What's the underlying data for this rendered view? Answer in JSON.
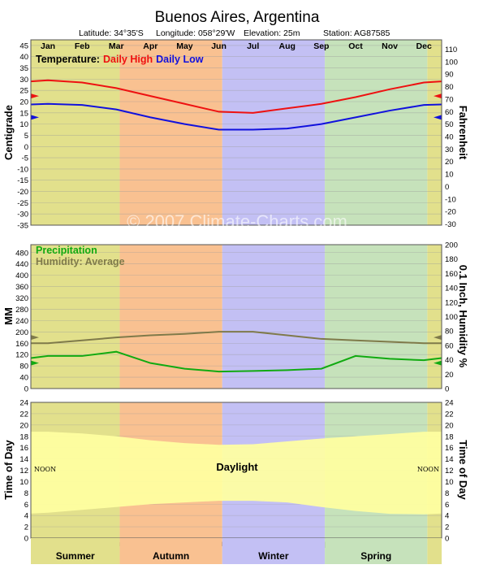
{
  "header": {
    "title": "Buenos Aires,  Argentina",
    "latitude": "Latitude: 34°35'S",
    "longitude": "Longitude: 058°29'W",
    "elevation": "Elevation: 25m",
    "station": "Station: AG87585"
  },
  "watermark": "© 2007 Climate-Charts.com",
  "months": [
    "Jan",
    "Feb",
    "Mar",
    "Apr",
    "May",
    "Jun",
    "Jul",
    "Aug",
    "Sep",
    "Oct",
    "Nov",
    "Dec"
  ],
  "seasons": [
    {
      "name": "Summer",
      "color": "#e2e08c"
    },
    {
      "name": "Autumn",
      "color": "#f9c191"
    },
    {
      "name": "Winter",
      "color": "#c3c0f4"
    },
    {
      "name": "Spring",
      "color": "#c6e2bb"
    }
  ],
  "colors": {
    "daily_high": "#ee1111",
    "daily_low": "#1111dd",
    "precipitation": "#11aa11",
    "humidity": "#7f7a4a",
    "daylight": "#ffffa0"
  },
  "chart_data": [
    {
      "type": "line",
      "legend_prefix": "Temperature:",
      "ylabel": "Centigrade",
      "y2label": "Fahrenheit",
      "categories": [
        "Jan",
        "Feb",
        "Mar",
        "Apr",
        "May",
        "Jun",
        "Jul",
        "Aug",
        "Sep",
        "Oct",
        "Nov",
        "Dec"
      ],
      "series": [
        {
          "name": "Daily High",
          "values": [
            29.5,
            28.5,
            26,
            22.5,
            19,
            15.5,
            15,
            17,
            19,
            22,
            25.5,
            28.5
          ]
        },
        {
          "name": "Daily Low",
          "values": [
            19,
            18.5,
            16.5,
            13,
            10,
            7.5,
            7.5,
            8,
            10,
            13,
            16,
            18.5
          ]
        }
      ],
      "ylim": [
        -35,
        45
      ],
      "y_ticks": [
        45,
        40,
        35,
        30,
        25,
        20,
        15,
        10,
        5,
        0,
        -5,
        -10,
        -15,
        -20,
        -25,
        -30,
        -35
      ],
      "y2_ticks": [
        110,
        100,
        90,
        80,
        70,
        60,
        50,
        40,
        30,
        20,
        10,
        0,
        -10,
        -20,
        -30
      ],
      "annual_mean_marks": {
        "daily_high": 22.5,
        "daily_low": 13
      }
    },
    {
      "type": "line",
      "ylabel": "MM",
      "y2label": "0.1 Inch, Humidity %",
      "categories": [
        "Jan",
        "Feb",
        "Mar",
        "Apr",
        "May",
        "Jun",
        "Jul",
        "Aug",
        "Sep",
        "Oct",
        "Nov",
        "Dec"
      ],
      "series": [
        {
          "name": "Precipitation",
          "values": [
            115,
            115,
            130,
            90,
            70,
            60,
            62,
            65,
            70,
            115,
            105,
            100
          ]
        },
        {
          "name": "Humidity: Average",
          "values": [
            63,
            67,
            71,
            74,
            76,
            79,
            79,
            74,
            69,
            67,
            65,
            63
          ]
        }
      ],
      "ylim": [
        0,
        508
      ],
      "y_ticks": [
        480,
        440,
        400,
        360,
        320,
        280,
        240,
        200,
        160,
        120,
        80,
        40,
        0
      ],
      "y2_ticks": [
        200,
        180,
        160,
        140,
        120,
        100,
        80,
        60,
        40,
        20,
        0
      ],
      "y2lim": [
        0,
        200
      ],
      "annual_mean_marks": {
        "precipitation": 90,
        "humidity": 71
      }
    },
    {
      "type": "area",
      "ylabel": "Time of Day",
      "y2label": "Time of Day",
      "series_label": "Daylight",
      "noon_label": "NOON",
      "categories": [
        "Jan",
        "Feb",
        "Mar",
        "Apr",
        "May",
        "Jun",
        "Jul",
        "Aug",
        "Sep",
        "Oct",
        "Nov",
        "Dec"
      ],
      "sunrise": [
        4.5,
        5,
        5.5,
        6,
        6.3,
        6.6,
        6.6,
        6.3,
        5.5,
        4.8,
        4.3,
        4.2
      ],
      "sunset": [
        18.8,
        18.5,
        18,
        17.3,
        16.8,
        16.5,
        16.6,
        17.1,
        17.6,
        18.0,
        18.4,
        18.8
      ],
      "ylim": [
        0,
        24
      ],
      "y_ticks": [
        24,
        22,
        20,
        18,
        16,
        14,
        12,
        10,
        8,
        6,
        4,
        2,
        0
      ]
    }
  ]
}
